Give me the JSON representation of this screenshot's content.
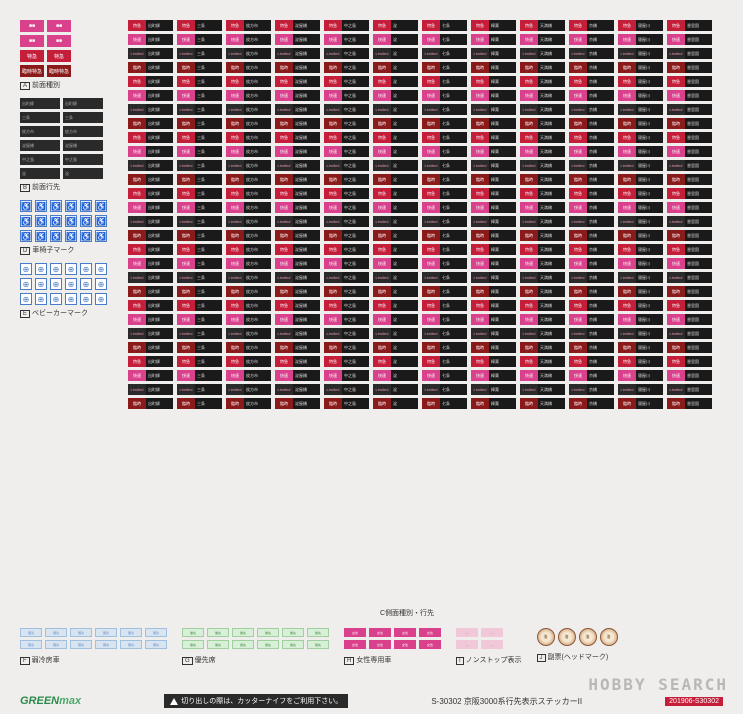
{
  "sectionA": {
    "label": "前面種別",
    "letter": "A",
    "chips": [
      {
        "cls": "pink",
        "t": "■■"
      },
      {
        "cls": "pink",
        "t": "■■"
      },
      {
        "cls": "pink",
        "t": "■■"
      },
      {
        "cls": "pink",
        "t": "■■"
      },
      {
        "cls": "red",
        "t": "特急"
      },
      {
        "cls": "red",
        "t": "特急"
      },
      {
        "cls": "darkred",
        "t": "臨時特急"
      },
      {
        "cls": "darkred",
        "t": "臨時特急"
      }
    ]
  },
  "sectionB": {
    "label": "前面行先",
    "letter": "B",
    "rows": [
      [
        "出町柳",
        "出町柳"
      ],
      [
        "三条",
        "三条"
      ],
      [
        "枚方市",
        "枚方市"
      ],
      [
        "淀屋橋",
        "淀屋橋"
      ],
      [
        "中之島",
        "中之島"
      ],
      [
        "淀",
        "淀"
      ]
    ]
  },
  "sectionD": {
    "label": "車椅子マーク",
    "letter": "D",
    "icon": "♿",
    "count": 18
  },
  "sectionE": {
    "label": "ベビーカーマーク",
    "letter": "E",
    "icon": "⊕",
    "count": 18
  },
  "mainGrid": {
    "label": "側面種別・行先",
    "letter": "C",
    "types": [
      "type-red",
      "type-pink",
      "type-blk",
      "type-dred"
    ],
    "typeLabels": [
      "特急",
      "快速",
      "Limited",
      "臨時"
    ],
    "dests": [
      "出町柳",
      "三条",
      "枚方市",
      "淀屋橋",
      "中之島",
      "淀",
      "七条",
      "樟葉",
      "天満橋",
      "京橋",
      "寝屋川",
      "香里園"
    ],
    "total": 336
  },
  "bottom": {
    "groups": [
      {
        "letter": "F",
        "label": "弱冷房車",
        "cls": "bot-blue",
        "txt": "弱冷",
        "cols": 6,
        "rows": 2
      },
      {
        "letter": "G",
        "label": "優先席",
        "cls": "bot-green",
        "txt": "優先",
        "cols": 6,
        "rows": 2
      },
      {
        "letter": "H",
        "label": "女性専用車",
        "cls": "bot-pink",
        "txt": "女性",
        "cols": 4,
        "rows": 2
      },
      {
        "letter": "I",
        "label": "ノンストップ表示",
        "cls": "bot-lpink",
        "txt": "—",
        "cols": 2,
        "rows": 2
      }
    ],
    "headmark": {
      "letter": "J",
      "label": "副票(ヘッドマーク)",
      "count": 4
    }
  },
  "footer": {
    "logoA": "GREEN",
    "logoB": "max",
    "warning": "切り出しの際は、カッターナイフをご利用下さい。",
    "title": "S-30302 京阪3000系行先表示ステッカーII",
    "code": "201906-S30302"
  },
  "watermark": "HOBBY SEARCH"
}
